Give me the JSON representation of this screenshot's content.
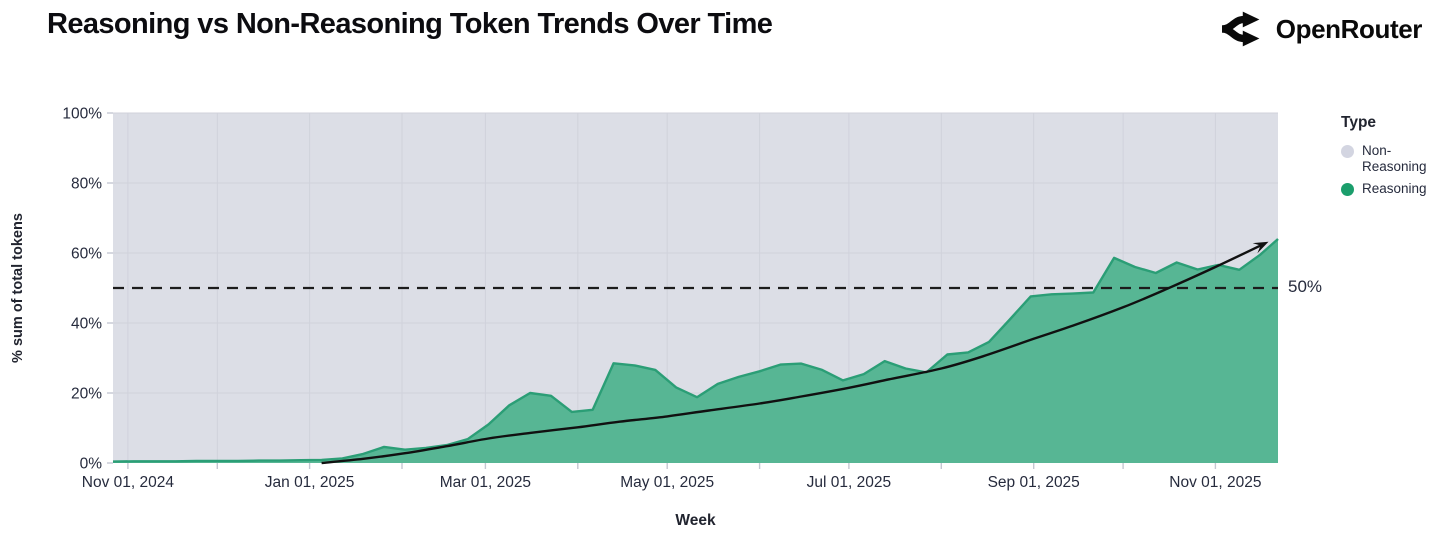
{
  "header": {
    "title": "Reasoning vs Non-Reasoning Token Trends Over Time",
    "brand_name": "OpenRouter"
  },
  "colors": {
    "page_bg": "#ffffff",
    "plot_bg": "#dcdee6",
    "grid": "#d0d2db",
    "tick": "#c4c7d2",
    "axis_text": "#262b3d",
    "area_fill": "#57b694",
    "area_stroke": "#2b9e76",
    "trend": "#111111",
    "reference": "#1c1c1c",
    "legend_non_reasoning": "#d3d5e1",
    "legend_reasoning": "#1b9e6c"
  },
  "chart_data": {
    "type": "area",
    "stacked_percent": true,
    "title": "Reasoning vs Non-Reasoning Token Trends Over Time",
    "xlabel": "Week",
    "ylabel": "% sum of total tokens",
    "ylim": [
      0,
      100
    ],
    "grid": true,
    "legend_position": "right",
    "y_ticks": [
      {
        "value": 0,
        "label": "0%"
      },
      {
        "value": 20,
        "label": "20%"
      },
      {
        "value": 40,
        "label": "40%"
      },
      {
        "value": 60,
        "label": "60%"
      },
      {
        "value": 80,
        "label": "80%"
      },
      {
        "value": 100,
        "label": "100%"
      }
    ],
    "x_domain": [
      "2024-10-27",
      "2025-11-22"
    ],
    "x_month_ticks": [
      "2024-11-01",
      "2024-12-01",
      "2025-01-01",
      "2025-02-01",
      "2025-03-01",
      "2025-04-01",
      "2025-05-01",
      "2025-06-01",
      "2025-07-01",
      "2025-08-01",
      "2025-09-01",
      "2025-10-01",
      "2025-11-01"
    ],
    "x_tick_labels": [
      {
        "date": "2024-11-01",
        "label": "Nov 01, 2024"
      },
      {
        "date": "2025-01-01",
        "label": "Jan 01, 2025"
      },
      {
        "date": "2025-03-01",
        "label": "Mar 01, 2025"
      },
      {
        "date": "2025-05-01",
        "label": "May 01, 2025"
      },
      {
        "date": "2025-07-01",
        "label": "Jul 01, 2025"
      },
      {
        "date": "2025-09-01",
        "label": "Sep 01, 2025"
      },
      {
        "date": "2025-11-01",
        "label": "Nov 01, 2025"
      }
    ],
    "legend": {
      "title": "Type",
      "items": [
        {
          "label": "Non-Reasoning",
          "color_key": "legend_non_reasoning"
        },
        {
          "label": "Reasoning",
          "color_key": "legend_reasoning"
        }
      ]
    },
    "reference_line": {
      "value": 50,
      "label": "50%"
    },
    "series": [
      {
        "name": "Reasoning",
        "unit": "% of total tokens",
        "points": [
          {
            "date": "2024-10-27",
            "value": 0.4
          },
          {
            "date": "2024-11-03",
            "value": 0.5
          },
          {
            "date": "2024-11-10",
            "value": 0.5
          },
          {
            "date": "2024-11-17",
            "value": 0.5
          },
          {
            "date": "2024-11-24",
            "value": 0.6
          },
          {
            "date": "2024-12-01",
            "value": 0.6
          },
          {
            "date": "2024-12-08",
            "value": 0.6
          },
          {
            "date": "2024-12-15",
            "value": 0.7
          },
          {
            "date": "2024-12-22",
            "value": 0.7
          },
          {
            "date": "2024-12-29",
            "value": 0.8
          },
          {
            "date": "2025-01-05",
            "value": 0.9
          },
          {
            "date": "2025-01-12",
            "value": 1.3
          },
          {
            "date": "2025-01-19",
            "value": 2.6
          },
          {
            "date": "2025-01-26",
            "value": 4.6
          },
          {
            "date": "2025-02-02",
            "value": 3.8
          },
          {
            "date": "2025-02-09",
            "value": 4.3
          },
          {
            "date": "2025-02-16",
            "value": 5.1
          },
          {
            "date": "2025-02-23",
            "value": 6.8
          },
          {
            "date": "2025-03-02",
            "value": 11.0
          },
          {
            "date": "2025-03-09",
            "value": 16.5
          },
          {
            "date": "2025-03-16",
            "value": 20.0
          },
          {
            "date": "2025-03-23",
            "value": 19.2
          },
          {
            "date": "2025-03-30",
            "value": 14.6
          },
          {
            "date": "2025-04-06",
            "value": 15.2
          },
          {
            "date": "2025-04-13",
            "value": 28.5
          },
          {
            "date": "2025-04-20",
            "value": 27.9
          },
          {
            "date": "2025-04-27",
            "value": 26.6
          },
          {
            "date": "2025-05-04",
            "value": 21.6
          },
          {
            "date": "2025-05-11",
            "value": 18.8
          },
          {
            "date": "2025-05-18",
            "value": 22.6
          },
          {
            "date": "2025-05-25",
            "value": 24.6
          },
          {
            "date": "2025-06-01",
            "value": 26.2
          },
          {
            "date": "2025-06-08",
            "value": 28.1
          },
          {
            "date": "2025-06-15",
            "value": 28.4
          },
          {
            "date": "2025-06-22",
            "value": 26.6
          },
          {
            "date": "2025-06-29",
            "value": 23.6
          },
          {
            "date": "2025-07-06",
            "value": 25.4
          },
          {
            "date": "2025-07-13",
            "value": 29.1
          },
          {
            "date": "2025-07-20",
            "value": 27.0
          },
          {
            "date": "2025-07-27",
            "value": 25.9
          },
          {
            "date": "2025-08-03",
            "value": 31.0
          },
          {
            "date": "2025-08-10",
            "value": 31.6
          },
          {
            "date": "2025-08-17",
            "value": 34.6
          },
          {
            "date": "2025-08-24",
            "value": 41.0
          },
          {
            "date": "2025-08-31",
            "value": 47.6
          },
          {
            "date": "2025-09-07",
            "value": 48.2
          },
          {
            "date": "2025-09-14",
            "value": 48.4
          },
          {
            "date": "2025-09-21",
            "value": 48.7
          },
          {
            "date": "2025-09-28",
            "value": 58.6
          },
          {
            "date": "2025-10-05",
            "value": 56.0
          },
          {
            "date": "2025-10-12",
            "value": 54.3
          },
          {
            "date": "2025-10-19",
            "value": 57.3
          },
          {
            "date": "2025-10-26",
            "value": 55.3
          },
          {
            "date": "2025-11-02",
            "value": 56.6
          },
          {
            "date": "2025-11-09",
            "value": 55.2
          },
          {
            "date": "2025-11-16",
            "value": 59.5
          },
          {
            "date": "2025-11-22",
            "value": 64.0
          }
        ]
      },
      {
        "name": "Non-Reasoning",
        "unit": "% of total tokens",
        "definition": "remainder_to_100_percent"
      }
    ],
    "trend_line": {
      "style": "smooth-arrow",
      "points": [
        {
          "date": "2025-01-05",
          "value": 0
        },
        {
          "date": "2025-01-19",
          "value": 1.2
        },
        {
          "date": "2025-02-02",
          "value": 2.8
        },
        {
          "date": "2025-02-16",
          "value": 4.8
        },
        {
          "date": "2025-03-02",
          "value": 7.0
        },
        {
          "date": "2025-03-16",
          "value": 8.6
        },
        {
          "date": "2025-04-01",
          "value": 10.2
        },
        {
          "date": "2025-04-15",
          "value": 11.8
        },
        {
          "date": "2025-05-01",
          "value": 13.3
        },
        {
          "date": "2025-05-15",
          "value": 15.0
        },
        {
          "date": "2025-06-01",
          "value": 17.0
        },
        {
          "date": "2025-06-15",
          "value": 19.0
        },
        {
          "date": "2025-07-01",
          "value": 21.5
        },
        {
          "date": "2025-07-15",
          "value": 24.0
        },
        {
          "date": "2025-08-01",
          "value": 27.0
        },
        {
          "date": "2025-08-15",
          "value": 30.5
        },
        {
          "date": "2025-09-01",
          "value": 35.5
        },
        {
          "date": "2025-09-15",
          "value": 39.5
        },
        {
          "date": "2025-10-01",
          "value": 44.5
        },
        {
          "date": "2025-10-15",
          "value": 49.5
        },
        {
          "date": "2025-11-01",
          "value": 56.0
        },
        {
          "date": "2025-11-17",
          "value": 62.5
        }
      ]
    }
  }
}
